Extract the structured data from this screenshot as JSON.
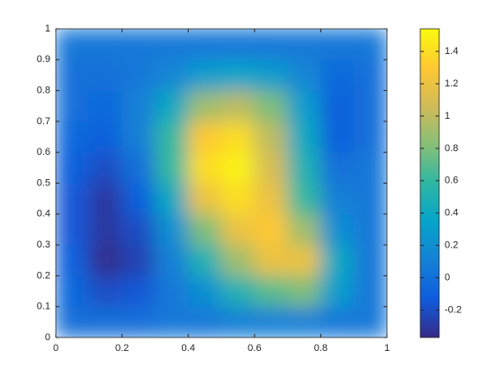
{
  "chart_data": {
    "type": "heatmap",
    "x": [
      0.05,
      0.15,
      0.25,
      0.35,
      0.45,
      0.55,
      0.65,
      0.75,
      0.85,
      0.95
    ],
    "y": [
      0.05,
      0.15,
      0.25,
      0.35,
      0.45,
      0.55,
      0.65,
      0.75,
      0.85,
      0.95
    ],
    "z": [
      [
        0.0,
        0.0,
        0.0,
        0.05,
        0.05,
        0.1,
        0.1,
        0.1,
        0.05,
        0.05
      ],
      [
        -0.05,
        -0.2,
        -0.15,
        0.05,
        0.2,
        0.5,
        0.7,
        0.8,
        0.3,
        0.05
      ],
      [
        -0.1,
        -0.35,
        -0.25,
        0.1,
        0.5,
        0.9,
        1.2,
        1.2,
        0.4,
        0.05
      ],
      [
        -0.15,
        -0.3,
        -0.2,
        0.2,
        0.8,
        1.2,
        1.3,
        0.9,
        0.2,
        0.05
      ],
      [
        -0.15,
        -0.3,
        -0.1,
        0.4,
        1.2,
        1.4,
        1.2,
        0.6,
        0.1,
        0.05
      ],
      [
        -0.1,
        -0.2,
        0.0,
        0.6,
        1.4,
        1.5,
        1.1,
        0.5,
        0.0,
        0.05
      ],
      [
        -0.05,
        -0.1,
        0.1,
        0.6,
        1.3,
        1.4,
        1.0,
        0.4,
        -0.1,
        0.0
      ],
      [
        0.0,
        -0.05,
        0.1,
        0.4,
        0.9,
        1.0,
        0.8,
        0.3,
        -0.1,
        0.0
      ],
      [
        0.0,
        0.0,
        0.05,
        0.15,
        0.3,
        0.35,
        0.3,
        0.15,
        -0.05,
        0.0
      ],
      [
        0.05,
        0.05,
        0.05,
        0.05,
        0.05,
        0.05,
        0.05,
        0.05,
        0.05,
        0.05
      ]
    ],
    "xlim": [
      0,
      1
    ],
    "ylim": [
      0,
      1
    ],
    "xticks": [
      0,
      0.2,
      0.4,
      0.6,
      0.8,
      1
    ],
    "yticks": [
      0,
      0.1,
      0.2,
      0.3,
      0.4,
      0.5,
      0.6,
      0.7,
      0.8,
      0.9,
      1
    ],
    "clim": [
      -0.37,
      1.54
    ],
    "cticks": [
      -0.2,
      0,
      0.2,
      0.4,
      0.6,
      0.8,
      1,
      1.2,
      1.4
    ],
    "colormap": [
      "#352a87",
      "#0f5cdd",
      "#1481d6",
      "#06a4ca",
      "#2eb7a4",
      "#87bf77",
      "#d1bb59",
      "#fec832",
      "#f9fb0e"
    ]
  }
}
